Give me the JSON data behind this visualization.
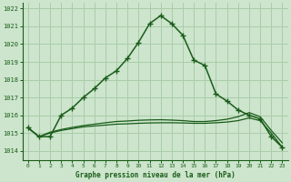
{
  "background_color": "#cce5cc",
  "grid_color": "#aaccaa",
  "line_color": "#1a5c1a",
  "ylim": [
    1013.5,
    1022.3
  ],
  "yticks": [
    1014,
    1015,
    1016,
    1017,
    1018,
    1019,
    1020,
    1021,
    1022
  ],
  "xlim": [
    -0.5,
    23.5
  ],
  "xticks": [
    0,
    1,
    2,
    3,
    4,
    5,
    6,
    7,
    8,
    9,
    10,
    11,
    12,
    13,
    14,
    15,
    16,
    17,
    18,
    19,
    20,
    21,
    22,
    23
  ],
  "xlabel": "Graphe pression niveau de la mer (hPa)",
  "series1": [
    1015.3,
    1014.8,
    1014.8,
    1016.0,
    1016.4,
    1017.0,
    1017.5,
    1018.1,
    1018.5,
    1019.2,
    1020.1,
    1021.15,
    1021.6,
    1021.15,
    1020.5,
    1019.1,
    1018.8,
    1017.2,
    1016.8,
    1016.3,
    1016.0,
    1015.8,
    1014.8,
    1014.2
  ],
  "series2": [
    1015.3,
    1014.8,
    1015.0,
    1015.15,
    1015.25,
    1015.35,
    1015.4,
    1015.45,
    1015.5,
    1015.52,
    1015.55,
    1015.57,
    1015.58,
    1015.58,
    1015.57,
    1015.55,
    1015.55,
    1015.58,
    1015.62,
    1015.7,
    1015.85,
    1015.7,
    1015.0,
    1014.2
  ],
  "series3": [
    1015.3,
    1014.8,
    1015.05,
    1015.2,
    1015.32,
    1015.42,
    1015.5,
    1015.58,
    1015.65,
    1015.68,
    1015.72,
    1015.74,
    1015.75,
    1015.73,
    1015.7,
    1015.65,
    1015.65,
    1015.7,
    1015.78,
    1015.92,
    1016.15,
    1015.92,
    1015.15,
    1014.45
  ]
}
